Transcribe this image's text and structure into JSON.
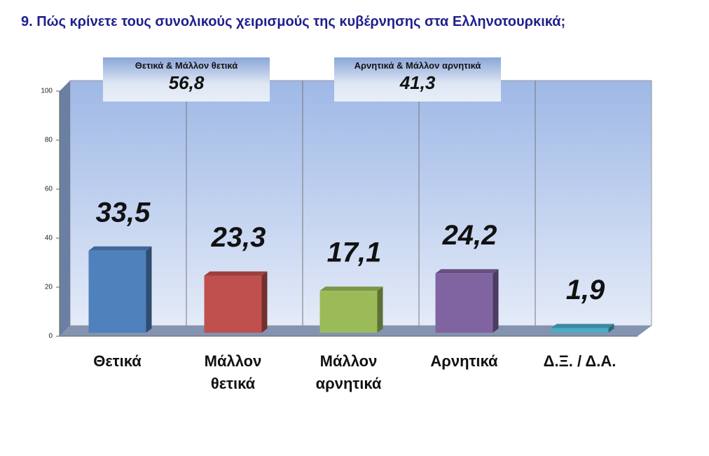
{
  "chart_data": {
    "type": "bar",
    "title": "9. Πώς κρίνετε τους συνολικούς χειρισμούς της κυβέρνησης στα Ελληνοτουρκικά;",
    "categories": [
      "Θετικά",
      "Μάλλον θετικά",
      "Μάλλον αρνητικά",
      "Αρνητικά",
      "Δ.Ξ. / Δ.Α."
    ],
    "values": [
      33.5,
      23.3,
      17.1,
      24.2,
      1.9
    ],
    "value_labels": [
      "33,5",
      "23,3",
      "17,1",
      "24,2",
      "1,9"
    ],
    "colors": [
      "#4f81bd",
      "#c0504d",
      "#9bbb59",
      "#8064a2",
      "#4bacc6"
    ],
    "ylim": [
      0,
      100
    ],
    "yticks": [
      0,
      20,
      40,
      60,
      80,
      100
    ],
    "grid": false,
    "annotations": [
      {
        "text": "Θετικά & Μάλλον θετικά",
        "value": 56.8,
        "value_label": "56,8"
      },
      {
        "text": "Αρνητικά & Μάλλον αρνητικά",
        "value": 41.3,
        "value_label": "41,3"
      }
    ]
  }
}
